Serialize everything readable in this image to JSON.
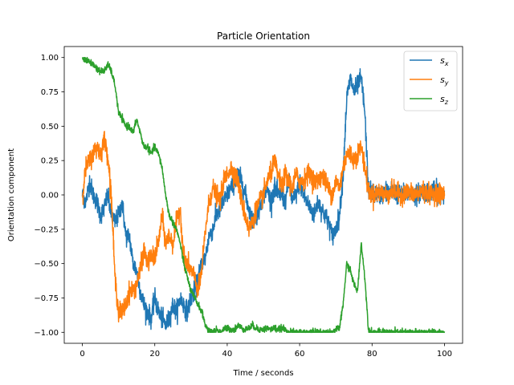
{
  "chart_data": {
    "type": "line",
    "title": "Particle Orientation",
    "xlabel": "Time / seconds",
    "ylabel": "Orientation component",
    "xlim": [
      -5,
      105
    ],
    "ylim": [
      -1.08,
      1.08
    ],
    "xticks": [
      0,
      20,
      40,
      60,
      80,
      100
    ],
    "xtick_labels": [
      "0",
      "20",
      "40",
      "60",
      "80",
      "100"
    ],
    "yticks": [
      -1.0,
      -0.75,
      -0.5,
      -0.25,
      0.0,
      0.25,
      0.5,
      0.75,
      1.0
    ],
    "ytick_labels": [
      "−1.00",
      "−0.75",
      "−0.50",
      "−0.25",
      "0.00",
      "0.25",
      "0.50",
      "0.75",
      "1.00"
    ],
    "grid": false,
    "legend_position": "top-right",
    "series": [
      {
        "name": "s_x",
        "legend_base": "s",
        "legend_sub": "x",
        "color": "#1f77b4",
        "noise": 0.035,
        "x": [
          0,
          1,
          2,
          3,
          4,
          5,
          6,
          7,
          8,
          9,
          10,
          11,
          12,
          13,
          14,
          15,
          16,
          17,
          18,
          19,
          20,
          21,
          22,
          23,
          24,
          25,
          26,
          27,
          28,
          29,
          30,
          31,
          32,
          33,
          34,
          35,
          36,
          37,
          38,
          39,
          40,
          41,
          42,
          43,
          44,
          45,
          46,
          47,
          48,
          49,
          50,
          51,
          52,
          53,
          54,
          55,
          56,
          57,
          58,
          59,
          60,
          61,
          62,
          63,
          64,
          65,
          66,
          67,
          68,
          69,
          70,
          71,
          72,
          73,
          74,
          75,
          76,
          77,
          78,
          79,
          80,
          82,
          84,
          86,
          88,
          90,
          92,
          94,
          96,
          98,
          100
        ],
        "values": [
          0.0,
          -0.05,
          0.1,
          0.0,
          -0.05,
          -0.15,
          -0.1,
          0.0,
          -0.15,
          -0.2,
          -0.15,
          -0.05,
          -0.3,
          -0.3,
          -0.5,
          -0.55,
          -0.7,
          -0.8,
          -0.85,
          -0.9,
          -0.75,
          -0.85,
          -0.9,
          -0.95,
          -0.9,
          -0.8,
          -0.85,
          -0.75,
          -0.8,
          -0.85,
          -0.75,
          -0.7,
          -0.6,
          -0.5,
          -0.45,
          -0.3,
          -0.25,
          -0.15,
          -0.1,
          -0.05,
          0.0,
          0.05,
          0.1,
          0.15,
          0.1,
          0.0,
          -0.1,
          -0.2,
          -0.15,
          -0.1,
          0.0,
          0.05,
          -0.05,
          0.05,
          0.0,
          0.0,
          -0.05,
          0.1,
          -0.05,
          0.0,
          0.1,
          0.0,
          -0.05,
          -0.1,
          -0.15,
          -0.05,
          -0.1,
          -0.15,
          -0.2,
          -0.3,
          -0.25,
          -0.15,
          0.15,
          0.7,
          0.85,
          0.75,
          0.8,
          0.85,
          0.6,
          0.03,
          0.02,
          0.0,
          0.03,
          0.02,
          0.0,
          0.02,
          0.0,
          0.03,
          0.02,
          0.03,
          0.0
        ]
      },
      {
        "name": "s_y",
        "legend_base": "s",
        "legend_sub": "y",
        "color": "#ff7f0e",
        "noise": 0.035,
        "x": [
          0,
          1,
          2,
          3,
          4,
          5,
          6,
          7,
          8,
          9,
          10,
          11,
          12,
          13,
          14,
          15,
          16,
          17,
          18,
          19,
          20,
          21,
          22,
          23,
          24,
          25,
          26,
          27,
          28,
          29,
          30,
          31,
          32,
          33,
          34,
          35,
          36,
          37,
          38,
          39,
          40,
          41,
          42,
          43,
          44,
          45,
          46,
          47,
          48,
          49,
          50,
          51,
          52,
          53,
          54,
          55,
          56,
          57,
          58,
          59,
          60,
          61,
          62,
          63,
          64,
          65,
          66,
          67,
          68,
          69,
          70,
          71,
          72,
          73,
          74,
          75,
          76,
          77,
          78,
          79,
          80,
          82,
          84,
          86,
          88,
          90,
          92,
          94,
          96,
          98,
          100
        ],
        "values": [
          0.0,
          0.2,
          0.25,
          0.3,
          0.35,
          0.3,
          0.4,
          0.3,
          0.0,
          -0.6,
          -0.85,
          -0.85,
          -0.8,
          -0.7,
          -0.7,
          -0.65,
          -0.55,
          -0.4,
          -0.5,
          -0.45,
          -0.45,
          -0.35,
          -0.15,
          -0.35,
          -0.3,
          -0.35,
          -0.2,
          -0.1,
          -0.45,
          -0.5,
          -0.55,
          -0.6,
          -0.7,
          -0.55,
          -0.25,
          -0.05,
          0.05,
          0.0,
          -0.05,
          0.1,
          0.15,
          0.2,
          0.15,
          0.1,
          -0.05,
          -0.15,
          -0.25,
          -0.2,
          -0.1,
          -0.05,
          0.0,
          0.1,
          0.15,
          0.25,
          0.15,
          0.05,
          0.15,
          0.1,
          0.05,
          0.15,
          0.1,
          0.1,
          0.15,
          0.15,
          0.1,
          0.1,
          0.15,
          0.1,
          0.05,
          0.0,
          0.1,
          0.05,
          0.2,
          0.3,
          0.3,
          0.25,
          0.3,
          0.35,
          0.2,
          0.03,
          0.0,
          0.02,
          0.0,
          0.03,
          0.0,
          0.02,
          0.0,
          0.03,
          0.0,
          0.02,
          0.0
        ]
      },
      {
        "name": "s_z",
        "legend_base": "s",
        "legend_sub": "z",
        "color": "#2ca02c",
        "noise": 0.012,
        "x": [
          0,
          1,
          2,
          3,
          4,
          5,
          6,
          7,
          8,
          9,
          10,
          11,
          12,
          13,
          14,
          15,
          16,
          17,
          18,
          19,
          20,
          21,
          22,
          23,
          24,
          25,
          26,
          27,
          28,
          29,
          30,
          31,
          32,
          33,
          34,
          35,
          36,
          37,
          38,
          39,
          40,
          41,
          42,
          43,
          44,
          45,
          46,
          47,
          48,
          49,
          50,
          51,
          52,
          53,
          54,
          55,
          56,
          57,
          58,
          59,
          60,
          61,
          62,
          63,
          64,
          65,
          66,
          67,
          68,
          69,
          70,
          71,
          72,
          73,
          74,
          75,
          76,
          77,
          78,
          79,
          80,
          82,
          84,
          86,
          88,
          90,
          92,
          94,
          96,
          98,
          100
        ],
        "values": [
          1.0,
          0.98,
          0.97,
          0.95,
          0.92,
          0.9,
          0.9,
          0.95,
          0.9,
          0.8,
          0.6,
          0.55,
          0.5,
          0.5,
          0.45,
          0.55,
          0.45,
          0.35,
          0.35,
          0.3,
          0.35,
          0.3,
          0.2,
          0.0,
          -0.15,
          -0.2,
          -0.25,
          -0.35,
          -0.5,
          -0.6,
          -0.7,
          -0.75,
          -0.8,
          -0.85,
          -0.95,
          -1.0,
          -1.0,
          -0.98,
          -1.0,
          -0.98,
          -0.97,
          -0.98,
          -0.98,
          -0.95,
          -0.97,
          -0.98,
          -0.97,
          -0.95,
          -0.97,
          -0.98,
          -0.98,
          -0.97,
          -0.98,
          -0.97,
          -0.98,
          -0.97,
          -0.98,
          -1.0,
          -1.0,
          -1.0,
          -1.0,
          -1.0,
          -1.0,
          -1.0,
          -1.0,
          -1.0,
          -1.0,
          -1.0,
          -1.0,
          -1.0,
          -0.98,
          -0.97,
          -0.8,
          -0.5,
          -0.55,
          -0.65,
          -0.7,
          -0.35,
          -0.6,
          -0.98,
          -1.0,
          -1.0,
          -1.0,
          -1.0,
          -1.0,
          -1.0,
          -1.0,
          -1.0,
          -1.0,
          -1.0,
          -1.0
        ]
      }
    ]
  }
}
